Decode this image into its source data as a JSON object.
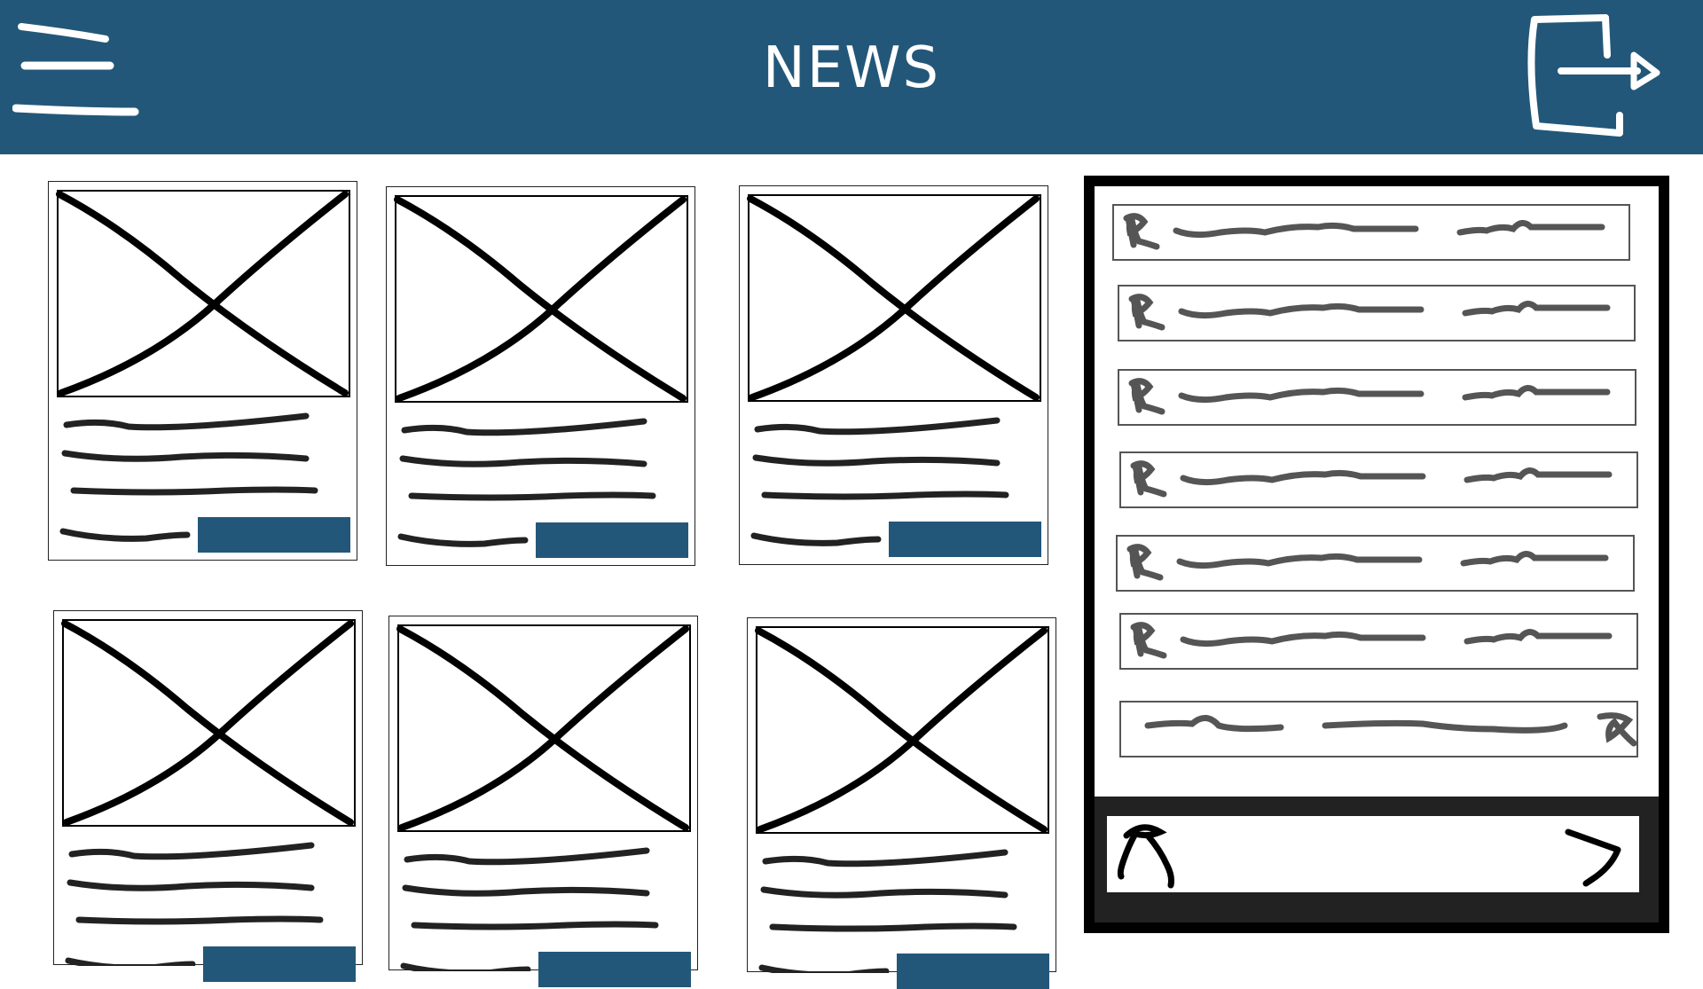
{
  "header": {
    "title": "NEWS",
    "background": "#235779",
    "menu_icon": "hamburger-menu-icon",
    "exit_icon": "logout-icon"
  },
  "news_cards": [
    {
      "image_icon": "image-placeholder-icon",
      "button_color": "#235779"
    },
    {
      "image_icon": "image-placeholder-icon",
      "button_color": "#235779"
    },
    {
      "image_icon": "image-placeholder-icon",
      "button_color": "#235779"
    },
    {
      "image_icon": "image-placeholder-icon",
      "button_color": "#235779"
    },
    {
      "image_icon": "image-placeholder-icon",
      "button_color": "#235779"
    },
    {
      "image_icon": "image-placeholder-icon",
      "button_color": "#235779"
    }
  ],
  "chat": {
    "messages": [
      {
        "sender": "received"
      },
      {
        "sender": "received"
      },
      {
        "sender": "received"
      },
      {
        "sender": "received"
      },
      {
        "sender": "received"
      },
      {
        "sender": "received"
      },
      {
        "sender": "sent"
      }
    ],
    "input_icon": "user-icon",
    "send_icon": "send-arrow-icon"
  }
}
